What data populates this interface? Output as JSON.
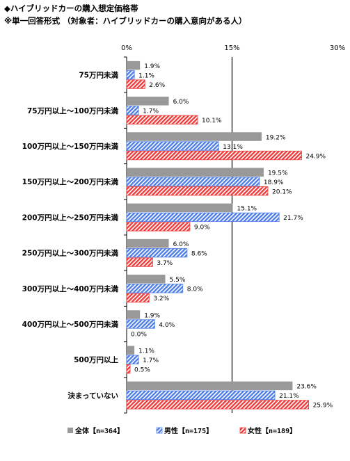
{
  "title": "◆ハイブリッドカーの購入想定価格帯",
  "subtitle": "※単一回答形式 （対象者：ハイブリッドカーの購入意向がある人）",
  "chart_data": {
    "type": "bar",
    "orientation": "horizontal",
    "xlim": [
      0,
      30
    ],
    "x_ticks": [
      "0%",
      "15%",
      "30%"
    ],
    "categories": [
      "75万円未満",
      "75万円以上～100万円未満",
      "100万円以上～150万円未満",
      "150万円以上～200万円未満",
      "200万円以上～250万円未満",
      "250万円以上～300万円未満",
      "300万円以上～400万円未満",
      "400万円以上～500万円未満",
      "500万円以上",
      "決まっていない"
    ],
    "series": [
      {
        "name": "全体【n=364】",
        "color": "#999999",
        "pattern": "solid",
        "values": [
          1.9,
          6.0,
          19.2,
          19.5,
          15.1,
          6.0,
          5.5,
          1.9,
          1.1,
          23.6
        ],
        "labels": [
          "1.9%",
          "6.0%",
          "19.2%",
          "19.5%",
          "15.1%",
          "6.0%",
          "5.5%",
          "1.9%",
          "1.1%",
          "23.6%"
        ]
      },
      {
        "name": "男性【n=175】",
        "color": "#4f7fe6",
        "pattern": "hatch",
        "values": [
          1.1,
          1.7,
          13.1,
          18.9,
          21.7,
          8.6,
          8.0,
          4.0,
          1.7,
          21.1
        ],
        "labels": [
          "1.1%",
          "1.7%",
          "13.1%",
          "18.9%",
          "21.7%",
          "8.6%",
          "8.0%",
          "4.0%",
          "1.7%",
          "21.1%"
        ]
      },
      {
        "name": "女性【n=189】",
        "color": "#ee3d3d",
        "pattern": "hatch",
        "values": [
          2.6,
          10.1,
          24.9,
          20.1,
          9.0,
          3.7,
          3.2,
          0.0,
          0.5,
          25.9
        ],
        "labels": [
          "2.6%",
          "10.1%",
          "24.9%",
          "20.1%",
          "9.0%",
          "3.7%",
          "3.2%",
          "0.0%",
          "0.5%",
          "25.9%"
        ]
      }
    ],
    "grid": false,
    "reference_line_at": 15,
    "legend_position": "bottom"
  }
}
